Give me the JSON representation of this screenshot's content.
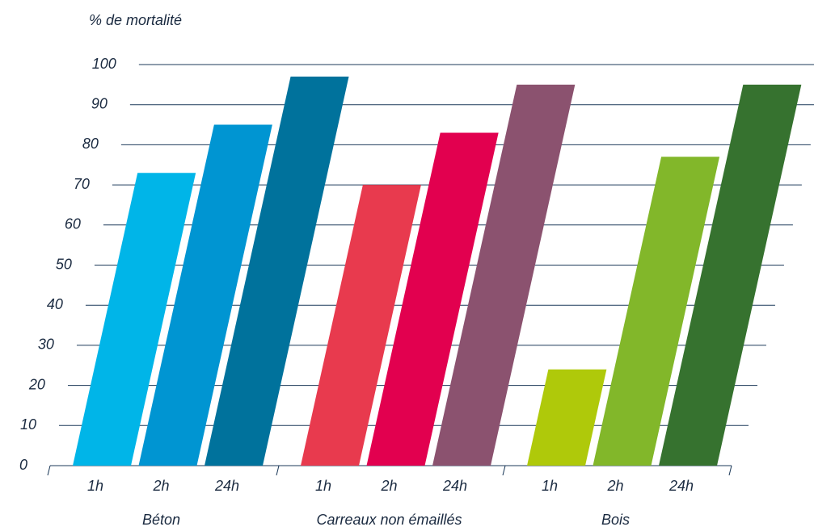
{
  "chart_data": {
    "type": "bar",
    "y_label": "% de mortalité",
    "categories": [
      "1h",
      "2h",
      "24h"
    ],
    "groups": [
      {
        "name": "Béton",
        "values": [
          73,
          85,
          97
        ],
        "colors": [
          "#00b5e8",
          "#0095d2",
          "#00729c"
        ]
      },
      {
        "name": "Carreaux non émaillés",
        "values": [
          70,
          83,
          95
        ],
        "colors": [
          "#e83a4e",
          "#e2004f",
          "#8b526f"
        ]
      },
      {
        "name": "Bois",
        "values": [
          24,
          77,
          95
        ],
        "colors": [
          "#afc90a",
          "#82b72a",
          "#36722f"
        ]
      }
    ],
    "ylim": [
      0,
      100
    ],
    "yticks": [
      0,
      10,
      20,
      30,
      40,
      50,
      60,
      70,
      80,
      90,
      100
    ],
    "grid": true
  }
}
